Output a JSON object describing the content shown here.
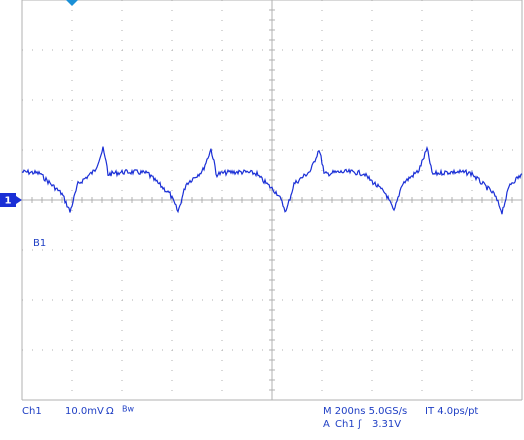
{
  "screen": {
    "channel_marker": "1",
    "ref_marker": "B1"
  },
  "status": {
    "channel": "Ch1",
    "scale": "10.0mV",
    "impedance": "Ω",
    "bandwidth": "Bw",
    "timebase": "M 200ns 5.0GS/s",
    "interpolation": "IT 4.0ps/pt",
    "trigger": {
      "mode": "A",
      "source": "Ch1",
      "slope": "ʃ",
      "level": "3.31V"
    }
  }
}
